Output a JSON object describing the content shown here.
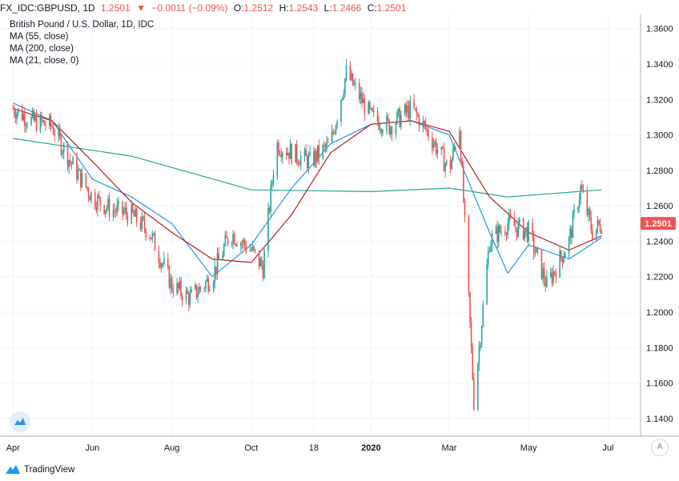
{
  "header": {
    "symbol": "FX_IDC:GBPUSD, 1D",
    "last": "1.2501",
    "change_icon": "down-triangle-icon",
    "change": "−0.0011 (−0.09%)",
    "open_label": "O:",
    "open": "1.2512",
    "high_label": "H:",
    "high": "1.2543",
    "low_label": "L:",
    "low": "1.2466",
    "close_label": "C:",
    "close": "1.2501"
  },
  "legend": {
    "title": "British Pound / U.S. Dollar, 1D, IDC",
    "studies": [
      "MA (55, close)",
      "MA (200, close)",
      "MA (21, close, 0)"
    ]
  },
  "price_tag": "1.2501",
  "auto_label": "A",
  "footer": {
    "brand": "TradingView",
    "logo_icon": "tradingview-logo-icon"
  },
  "colors": {
    "up": "#26a69a",
    "down": "#ef5350",
    "ma55": "#2196f3",
    "ma200": "#26a69a",
    "ma21": "#b71c1c",
    "price_tag": "#ef5350"
  },
  "chart_data": {
    "type": "candlestick",
    "title": "British Pound / U.S. Dollar, 1D, IDC",
    "x_tick_labels": [
      "Apr",
      "Jun",
      "Aug",
      "Oct",
      "18",
      "2020",
      "Mar",
      "May",
      "Jul"
    ],
    "y_tick_labels": [
      "1.3600",
      "1.3400",
      "1.3200",
      "1.3000",
      "1.2800",
      "1.2600",
      "1.2400",
      "1.2200",
      "1.2000",
      "1.1800",
      "1.1600",
      "1.1400"
    ],
    "ylim": [
      1.13,
      1.368
    ],
    "grid": true,
    "price_close_path": [
      [
        "2019-04-01",
        1.315
      ],
      [
        "2019-04-15",
        1.308
      ],
      [
        "2019-05-01",
        1.305
      ],
      [
        "2019-05-15",
        1.285
      ],
      [
        "2019-06-01",
        1.265
      ],
      [
        "2019-06-15",
        1.258
      ],
      [
        "2019-07-01",
        1.255
      ],
      [
        "2019-07-15",
        1.245
      ],
      [
        "2019-08-01",
        1.215
      ],
      [
        "2019-08-15",
        1.208
      ],
      [
        "2019-09-01",
        1.22
      ],
      [
        "2019-09-15",
        1.245
      ],
      [
        "2019-10-01",
        1.235
      ],
      [
        "2019-10-10",
        1.225
      ],
      [
        "2019-10-20",
        1.295
      ],
      [
        "2019-11-01",
        1.29
      ],
      [
        "2019-11-15",
        1.285
      ],
      [
        "2019-12-01",
        1.295
      ],
      [
        "2019-12-13",
        1.335
      ],
      [
        "2020-01-01",
        1.31
      ],
      [
        "2020-01-15",
        1.305
      ],
      [
        "2020-02-01",
        1.315
      ],
      [
        "2020-02-15",
        1.3
      ],
      [
        "2020-03-01",
        1.28
      ],
      [
        "2020-03-09",
        1.305
      ],
      [
        "2020-03-20",
        1.15
      ],
      [
        "2020-04-01",
        1.24
      ],
      [
        "2020-04-15",
        1.25
      ],
      [
        "2020-05-01",
        1.245
      ],
      [
        "2020-05-15",
        1.215
      ],
      [
        "2020-06-01",
        1.24
      ],
      [
        "2020-06-10",
        1.27
      ],
      [
        "2020-06-19",
        1.245
      ],
      [
        "2020-06-26",
        1.2501
      ]
    ],
    "series": [
      {
        "name": "MA (55, close)",
        "color": "#2196f3",
        "points": [
          [
            "2019-04-01",
            1.318
          ],
          [
            "2019-05-01",
            1.308
          ],
          [
            "2019-06-01",
            1.275
          ],
          [
            "2019-07-01",
            1.265
          ],
          [
            "2019-08-01",
            1.25
          ],
          [
            "2019-09-01",
            1.22
          ],
          [
            "2019-10-01",
            1.238
          ],
          [
            "2019-11-01",
            1.27
          ],
          [
            "2019-12-01",
            1.295
          ],
          [
            "2020-01-01",
            1.306
          ],
          [
            "2020-02-01",
            1.308
          ],
          [
            "2020-03-01",
            1.3
          ],
          [
            "2020-04-01",
            1.245
          ],
          [
            "2020-04-15",
            1.222
          ],
          [
            "2020-05-01",
            1.238
          ],
          [
            "2020-06-01",
            1.23
          ],
          [
            "2020-06-26",
            1.242
          ]
        ]
      },
      {
        "name": "MA (200, close)",
        "color": "#26a69a",
        "points": [
          [
            "2019-04-01",
            1.298
          ],
          [
            "2019-07-01",
            1.288
          ],
          [
            "2019-10-01",
            1.269
          ],
          [
            "2020-01-01",
            1.268
          ],
          [
            "2020-03-01",
            1.27
          ],
          [
            "2020-04-15",
            1.265
          ],
          [
            "2020-06-26",
            1.269
          ]
        ]
      },
      {
        "name": "MA (21, close, 0)",
        "color": "#b71c1c",
        "points": [
          [
            "2019-04-01",
            1.315
          ],
          [
            "2019-05-01",
            1.308
          ],
          [
            "2019-06-01",
            1.285
          ],
          [
            "2019-07-01",
            1.262
          ],
          [
            "2019-08-01",
            1.245
          ],
          [
            "2019-09-01",
            1.23
          ],
          [
            "2019-10-01",
            1.228
          ],
          [
            "2019-11-01",
            1.255
          ],
          [
            "2019-12-01",
            1.29
          ],
          [
            "2020-01-01",
            1.306
          ],
          [
            "2020-02-01",
            1.308
          ],
          [
            "2020-03-01",
            1.302
          ],
          [
            "2020-04-01",
            1.265
          ],
          [
            "2020-05-01",
            1.245
          ],
          [
            "2020-06-01",
            1.235
          ],
          [
            "2020-06-26",
            1.243
          ]
        ]
      }
    ]
  }
}
